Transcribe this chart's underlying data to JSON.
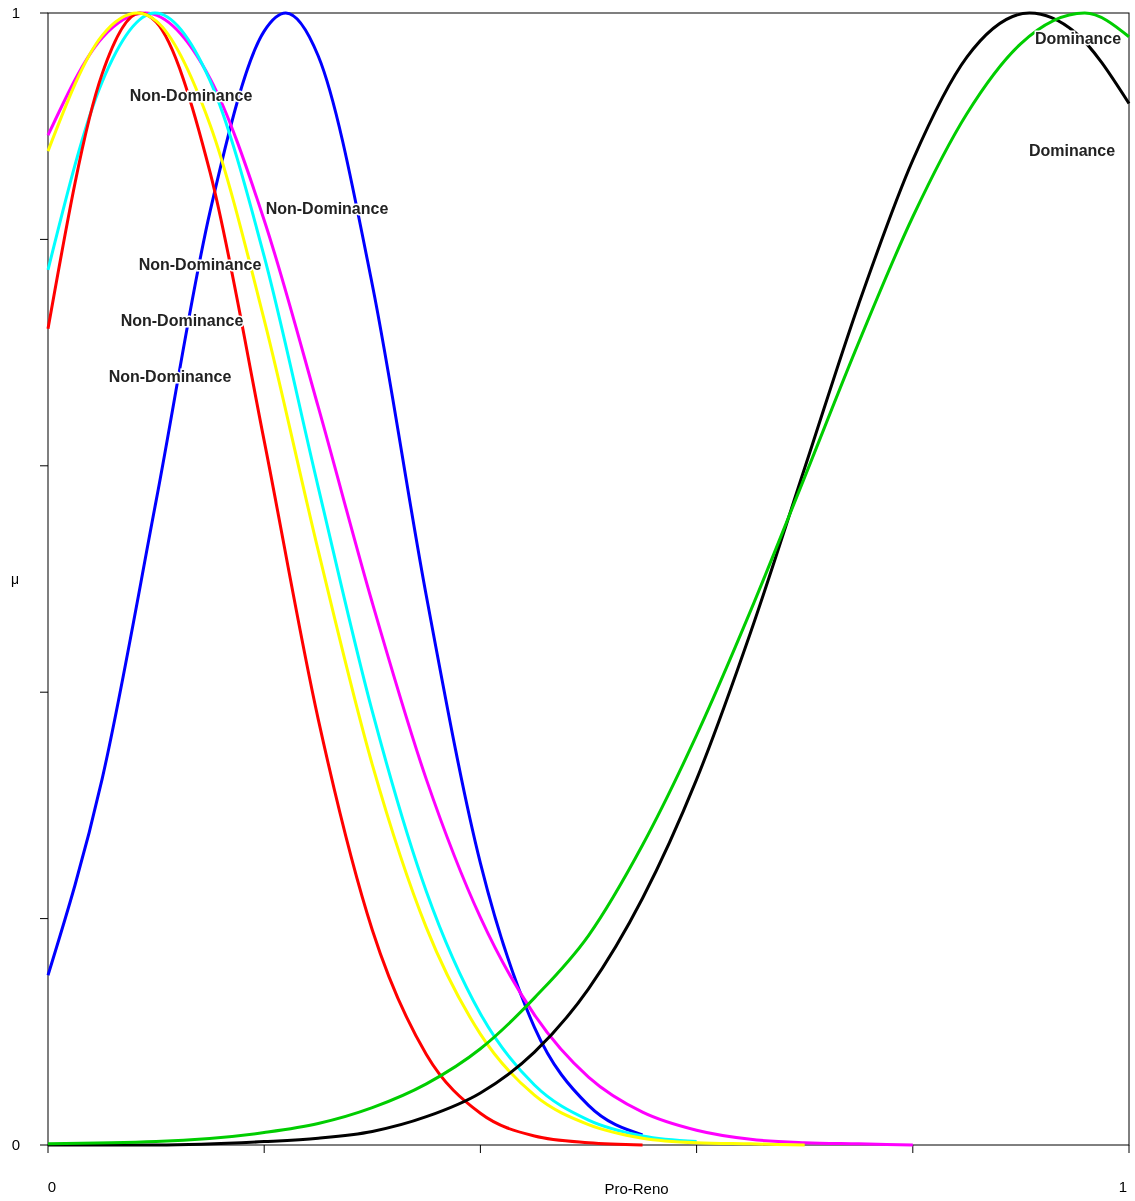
{
  "chart_data": {
    "type": "line",
    "xlabel": "Pro-Reno",
    "ylabel": "μ",
    "xlim": [
      0,
      1
    ],
    "ylim": [
      0,
      1
    ],
    "xticks": [
      0,
      {
        "value": 0.2,
        "label": null
      },
      {
        "value": 0.4,
        "label": null
      },
      {
        "value": 0.6,
        "label": null
      },
      {
        "value": 0.8,
        "label": null
      },
      1
    ],
    "yticks": [
      0,
      {
        "value": 0.2,
        "label": null
      },
      {
        "value": 0.4,
        "label": null
      },
      {
        "value": 0.6,
        "label": null
      },
      {
        "value": 0.8,
        "label": null
      },
      1
    ],
    "grid": false,
    "marker": "none",
    "line_style": "solid",
    "series": [
      {
        "color": "#0000ff",
        "x": [
          0,
          0.05,
          0.1,
          0.15,
          0.2,
          0.22,
          0.25,
          0.3,
          0.35,
          0.4,
          0.45,
          0.5,
          0.55
        ],
        "values": [
          0.15,
          0.323,
          0.569,
          0.825,
          0.984,
          1,
          0.962,
          0.76,
          0.485,
          0.249,
          0.104,
          0.035,
          0.009
        ]
      },
      {
        "color": "#ff00ff",
        "x": [
          0,
          0.05,
          0.09,
          0.15,
          0.2,
          0.25,
          0.3,
          0.35,
          0.4,
          0.45,
          0.5,
          0.55,
          0.6,
          0.65,
          0.7,
          0.75,
          0.8
        ],
        "values": [
          0.892,
          0.978,
          1,
          0.942,
          0.817,
          0.652,
          0.479,
          0.323,
          0.201,
          0.115,
          0.06,
          0.029,
          0.013,
          0.005,
          0.002,
          0.001,
          0
        ]
      },
      {
        "color": "#00ffff",
        "x": [
          0,
          0.05,
          0.099,
          0.15,
          0.2,
          0.25,
          0.3,
          0.35,
          0.4,
          0.45,
          0.5,
          0.55,
          0.6
        ],
        "values": [
          0.773,
          0.939,
          1,
          0.94,
          0.785,
          0.581,
          0.383,
          0.224,
          0.116,
          0.053,
          0.022,
          0.008,
          0.003
        ]
      },
      {
        "color": "#ff0000",
        "x": [
          0,
          0.05,
          0.085,
          0.1,
          0.15,
          0.2,
          0.25,
          0.3,
          0.35,
          0.4,
          0.45,
          0.5,
          0.55
        ],
        "values": [
          0.721,
          0.946,
          1,
          0.992,
          0.859,
          0.622,
          0.376,
          0.19,
          0.08,
          0.028,
          0.008,
          0.002,
          0
        ]
      },
      {
        "color": "#ffff00",
        "x": [
          0,
          0.05,
          0.083,
          0.1,
          0.15,
          0.2,
          0.25,
          0.3,
          0.35,
          0.4,
          0.45,
          0.5,
          0.55,
          0.6,
          0.65,
          0.7
        ],
        "values": [
          0.878,
          0.98,
          1,
          0.993,
          0.901,
          0.729,
          0.525,
          0.336,
          0.192,
          0.098,
          0.044,
          0.018,
          0.006,
          0.002,
          0.001,
          0
        ]
      },
      {
        "color": "#000000",
        "x": [
          0,
          0.1,
          0.2,
          0.25,
          0.3,
          0.35,
          0.4,
          0.45,
          0.5,
          0.55,
          0.6,
          0.65,
          0.7,
          0.75,
          0.8,
          0.85,
          0.908,
          0.95,
          1
        ],
        "values": [
          0,
          0,
          0.003,
          0.006,
          0.012,
          0.025,
          0.046,
          0.082,
          0.138,
          0.218,
          0.323,
          0.453,
          0.598,
          0.743,
          0.87,
          0.961,
          1,
          0.983,
          0.92
        ]
      },
      {
        "color": "#00cd00",
        "x": [
          0,
          0.1,
          0.2,
          0.25,
          0.3,
          0.35,
          0.4,
          0.45,
          0.5,
          0.55,
          0.6,
          0.65,
          0.7,
          0.75,
          0.8,
          0.85,
          0.9,
          0.959,
          1
        ],
        "values": [
          0.001,
          0.003,
          0.011,
          0.019,
          0.033,
          0.054,
          0.085,
          0.13,
          0.185,
          0.265,
          0.362,
          0.472,
          0.59,
          0.709,
          0.82,
          0.911,
          0.973,
          1,
          0.979
        ]
      }
    ],
    "annotations": [
      "Non-Dominance",
      "Non-Dominance",
      "Non-Dominance",
      "Non-Dominance",
      "Non-Dominance",
      "Dominance",
      "Dominance"
    ]
  }
}
